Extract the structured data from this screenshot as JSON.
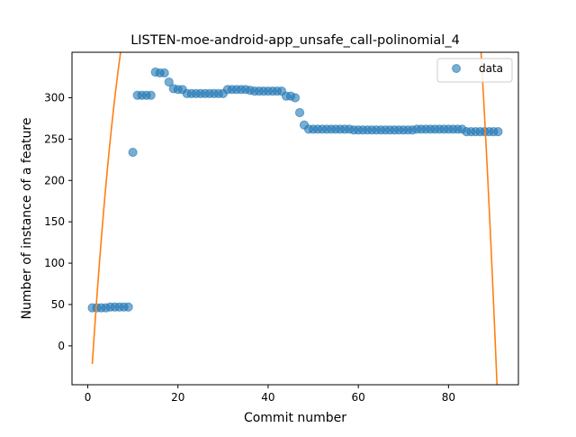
{
  "chart_data": {
    "type": "scatter",
    "title": "LISTEN-moe-android-app_unsafe_call-polinomial_4",
    "xlabel": "Commit number",
    "ylabel": "Number of instance of a feature",
    "xlim": [
      -3.5,
      95.5
    ],
    "ylim": [
      -47,
      355
    ],
    "xticks": [
      0,
      20,
      40,
      60,
      80
    ],
    "yticks": [
      0,
      50,
      100,
      150,
      200,
      250,
      300
    ],
    "legend": {
      "position": "upper-right",
      "entries": [
        "data"
      ]
    },
    "grid": false,
    "colors": {
      "scatter": "#1f77b4",
      "fit": "#ff7f0e"
    },
    "series": [
      {
        "name": "data",
        "kind": "scatter",
        "x": [
          1,
          2,
          3,
          4,
          5,
          6,
          7,
          8,
          9,
          10,
          11,
          12,
          13,
          14,
          15,
          16,
          17,
          18,
          19,
          20,
          21,
          22,
          23,
          24,
          25,
          26,
          27,
          28,
          29,
          30,
          31,
          32,
          33,
          34,
          35,
          36,
          37,
          38,
          39,
          40,
          41,
          42,
          43,
          44,
          45,
          46,
          47,
          48,
          49,
          50,
          51,
          52,
          53,
          54,
          55,
          56,
          57,
          58,
          59,
          60,
          61,
          62,
          63,
          64,
          65,
          66,
          67,
          68,
          69,
          70,
          71,
          72,
          73,
          74,
          75,
          76,
          77,
          78,
          79,
          80,
          81,
          82,
          83,
          84,
          85,
          86,
          87,
          88,
          89,
          90,
          91
        ],
        "y": [
          46,
          46,
          46,
          46,
          47,
          47,
          47,
          47,
          47,
          234,
          303,
          303,
          303,
          303,
          331,
          330,
          330,
          319,
          311,
          310,
          310,
          305,
          305,
          305,
          305,
          305,
          305,
          305,
          305,
          305,
          310,
          310,
          310,
          310,
          310,
          309,
          308,
          308,
          308,
          308,
          308,
          308,
          308,
          302,
          302,
          300,
          282,
          267,
          262,
          262,
          262,
          262,
          262,
          262,
          262,
          262,
          262,
          262,
          261,
          261,
          261,
          261,
          261,
          261,
          261,
          261,
          261,
          261,
          261,
          261,
          261,
          261,
          262,
          262,
          262,
          262,
          262,
          262,
          262,
          262,
          262,
          262,
          262,
          259,
          259,
          259,
          259,
          259,
          259,
          259,
          259
        ]
      },
      {
        "name": "",
        "kind": "line",
        "coefficients": [
          -109.97,
          92.5,
          -4.5,
          0.082,
          -0.00048
        ],
        "x_range": [
          1,
          91
        ]
      }
    ]
  }
}
